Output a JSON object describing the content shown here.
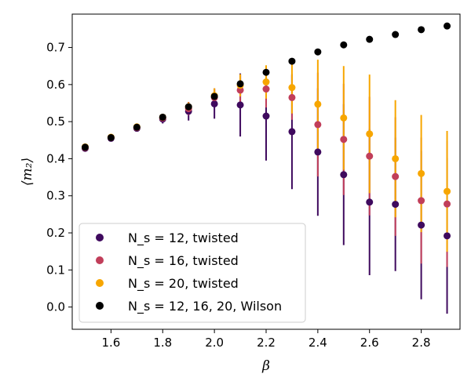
{
  "chart_data": {
    "type": "scatter",
    "xlabel": "β",
    "ylabel": "⟨m₂⟩",
    "xlim": [
      1.45,
      2.95
    ],
    "ylim": [
      -0.06,
      0.79
    ],
    "xticks": [
      1.6,
      1.8,
      2.0,
      2.2,
      2.4,
      2.6,
      2.8
    ],
    "xtick_labels": [
      "1.6",
      "1.8",
      "2.0",
      "2.2",
      "2.4",
      "2.6",
      "2.8"
    ],
    "yticks": [
      0.0,
      0.1,
      0.2,
      0.3,
      0.4,
      0.5,
      0.6,
      0.7
    ],
    "ytick_labels": [
      "0.0",
      "0.1",
      "0.2",
      "0.3",
      "0.4",
      "0.5",
      "0.6",
      "0.7"
    ],
    "legend_position": "lower-left",
    "series": [
      {
        "name": "N_s = 12, twisted",
        "legend_label": "N_s = 12, twisted",
        "color": "#3f0a5e",
        "x": [
          1.5,
          1.6,
          1.7,
          1.8,
          1.9,
          2.0,
          2.1,
          2.2,
          2.3,
          2.4,
          2.5,
          2.6,
          2.7,
          2.8,
          2.9
        ],
        "y": [
          0.428,
          0.455,
          0.482,
          0.507,
          0.528,
          0.548,
          0.545,
          0.515,
          0.473,
          0.418,
          0.357,
          0.283,
          0.277,
          0.221,
          0.192
        ],
        "yerr": [
          0.004,
          0.006,
          0.008,
          0.012,
          0.025,
          0.04,
          0.085,
          0.12,
          0.155,
          0.172,
          0.19,
          0.197,
          0.18,
          0.2,
          0.21
        ]
      },
      {
        "name": "N_s = 16, twisted",
        "legend_label": "N_s = 16, twisted",
        "color": "#c13e5a",
        "x": [
          1.5,
          1.6,
          1.7,
          1.8,
          1.9,
          2.0,
          2.1,
          2.2,
          2.3,
          2.4,
          2.5,
          2.6,
          2.7,
          2.8,
          2.9
        ],
        "y": [
          0.43,
          0.457,
          0.484,
          0.51,
          0.535,
          0.565,
          0.585,
          0.588,
          0.565,
          0.492,
          0.452,
          0.407,
          0.352,
          0.287,
          0.278
        ],
        "yerr": [
          0.003,
          0.005,
          0.007,
          0.01,
          0.018,
          0.025,
          0.04,
          0.05,
          0.06,
          0.14,
          0.15,
          0.16,
          0.16,
          0.17,
          0.17
        ]
      },
      {
        "name": "N_s = 20, twisted",
        "legend_label": "N_s = 20, twisted",
        "color": "#f7a600",
        "x": [
          1.5,
          1.6,
          1.7,
          1.8,
          1.9,
          2.0,
          2.1,
          2.2,
          2.3,
          2.4,
          2.5,
          2.6,
          2.7,
          2.8,
          2.9
        ],
        "y": [
          0.432,
          0.458,
          0.486,
          0.512,
          0.54,
          0.57,
          0.598,
          0.607,
          0.592,
          0.547,
          0.51,
          0.467,
          0.4,
          0.36,
          0.312
        ],
        "yerr": [
          0.003,
          0.004,
          0.006,
          0.008,
          0.012,
          0.02,
          0.03,
          0.045,
          0.07,
          0.12,
          0.14,
          0.16,
          0.158,
          0.158,
          0.163
        ]
      },
      {
        "name": "N_s = 12, 16, 20, Wilson",
        "legend_label": "N_s = 12, 16, 20, Wilson",
        "color": "#000000",
        "x": [
          1.5,
          1.6,
          1.7,
          1.8,
          1.9,
          2.0,
          2.1,
          2.2,
          2.3,
          2.4,
          2.5,
          2.6,
          2.7,
          2.8,
          2.9
        ],
        "y": [
          0.431,
          0.457,
          0.485,
          0.512,
          0.54,
          0.568,
          0.602,
          0.633,
          0.663,
          0.688,
          0.707,
          0.722,
          0.735,
          0.748,
          0.758
        ],
        "yerr": [
          0,
          0,
          0,
          0,
          0,
          0,
          0,
          0,
          0,
          0,
          0,
          0,
          0,
          0,
          0
        ]
      }
    ]
  }
}
